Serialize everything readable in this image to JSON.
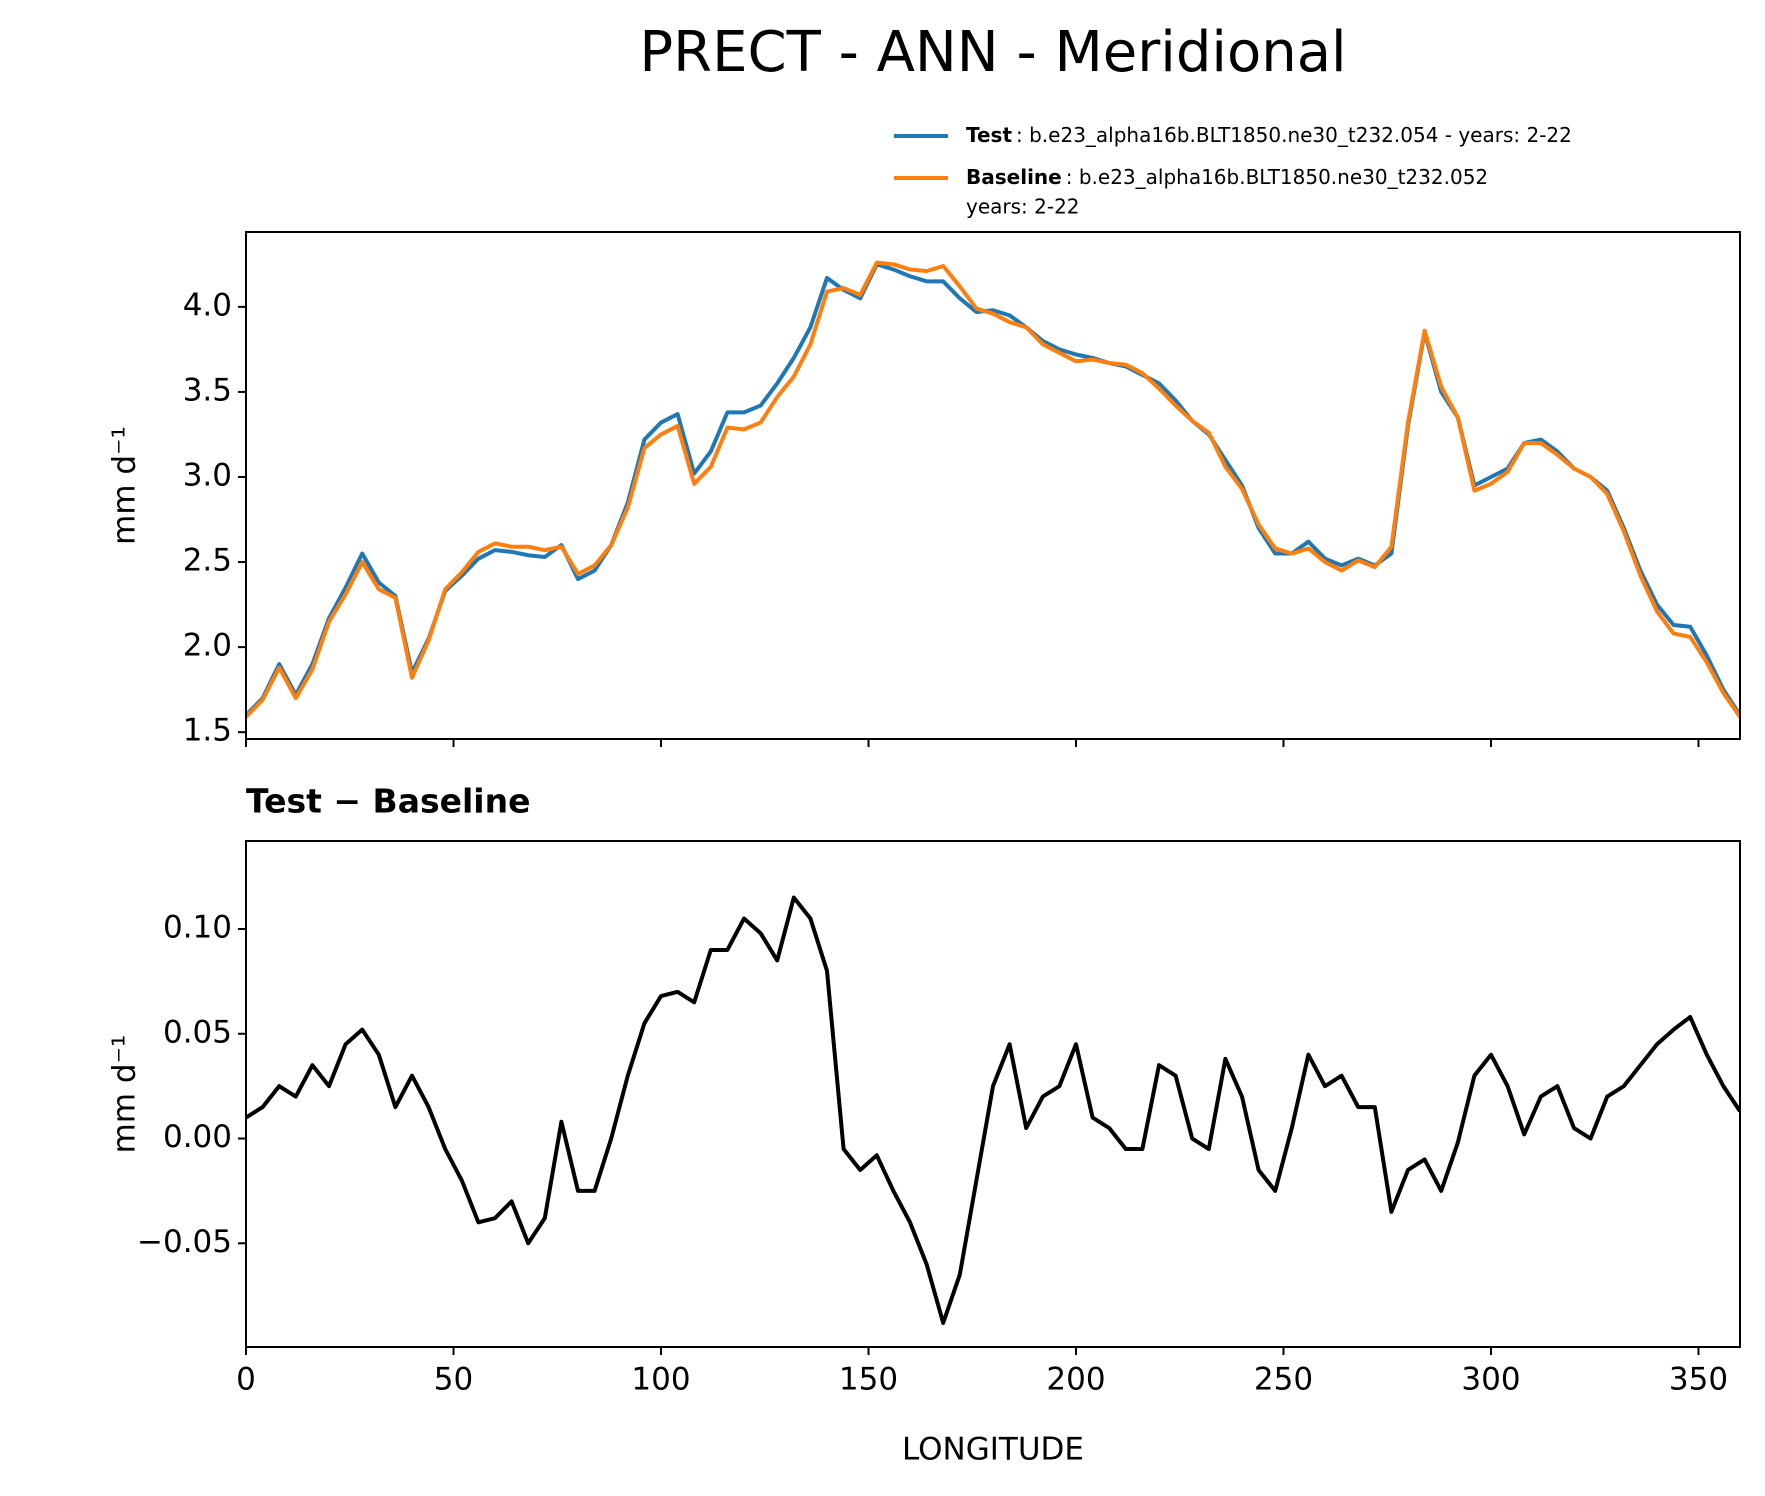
{
  "chart_data": [
    {
      "type": "line",
      "title": "PRECT - ANN - Meridional",
      "ylabel": "mm d⁻¹",
      "xlim": [
        0,
        360
      ],
      "ylim": [
        1.46,
        4.44
      ],
      "xticks": [
        0,
        50,
        100,
        150,
        200,
        250,
        300,
        350
      ],
      "yticks": [
        {
          "value": 1.5,
          "label": "1.5"
        },
        {
          "value": 2,
          "label": "2.0"
        },
        {
          "value": 2.5,
          "label": "2.5"
        },
        {
          "value": 3,
          "label": "3.0"
        },
        {
          "value": 3.5,
          "label": "3.5"
        },
        {
          "value": 4,
          "label": "4.0"
        }
      ],
      "x": [
        0,
        4,
        8,
        12,
        16,
        20,
        24,
        28,
        32,
        36,
        40,
        44,
        48,
        52,
        56,
        60,
        64,
        68,
        72,
        76,
        80,
        84,
        88,
        92,
        96,
        100,
        104,
        108,
        112,
        116,
        120,
        124,
        128,
        132,
        136,
        140,
        144,
        148,
        152,
        156,
        160,
        164,
        168,
        172,
        176,
        180,
        184,
        188,
        192,
        196,
        200,
        204,
        208,
        212,
        216,
        220,
        224,
        228,
        232,
        236,
        240,
        244,
        248,
        252,
        256,
        260,
        264,
        268,
        272,
        276,
        280,
        284,
        288,
        292,
        296,
        300,
        304,
        308,
        312,
        316,
        320,
        324,
        328,
        332,
        336,
        340,
        344,
        348,
        352,
        356,
        360
      ],
      "series": [
        {
          "name": "Test",
          "legend_lines": [
            ": b.e23_alpha16b.BLT1850.ne30_t232.054 - years: 2-22"
          ],
          "color": "#1f77b4",
          "values": [
            1.6,
            1.7,
            1.9,
            1.72,
            1.9,
            2.17,
            2.35,
            2.55,
            2.38,
            2.3,
            1.85,
            2.05,
            2.33,
            2.42,
            2.52,
            2.57,
            2.56,
            2.54,
            2.53,
            2.6,
            2.4,
            2.45,
            2.6,
            2.85,
            3.22,
            3.32,
            3.37,
            3.02,
            3.15,
            3.38,
            3.38,
            3.42,
            3.55,
            3.7,
            3.88,
            4.17,
            4.1,
            4.05,
            4.25,
            4.22,
            4.18,
            4.15,
            4.15,
            4.05,
            3.97,
            3.98,
            3.95,
            3.88,
            3.8,
            3.75,
            3.72,
            3.7,
            3.67,
            3.65,
            3.6,
            3.55,
            3.45,
            3.33,
            3.25,
            3.1,
            2.95,
            2.7,
            2.55,
            2.55,
            2.62,
            2.52,
            2.48,
            2.52,
            2.48,
            2.55,
            3.3,
            3.85,
            3.5,
            3.35,
            2.95,
            3.0,
            3.05,
            3.2,
            3.22,
            3.15,
            3.05,
            3.0,
            2.92,
            2.7,
            2.45,
            2.25,
            2.13,
            2.12,
            1.95,
            1.75,
            1.6
          ]
        },
        {
          "name": "Baseline",
          "legend_lines": [
            ": b.e23_alpha16b.BLT1850.ne30_t232.052",
            "years: 2-22"
          ],
          "color": "#ff7f0e",
          "values": [
            1.59,
            1.69,
            1.88,
            1.7,
            1.87,
            2.15,
            2.31,
            2.5,
            2.34,
            2.29,
            1.82,
            2.04,
            2.34,
            2.44,
            2.56,
            2.61,
            2.59,
            2.59,
            2.57,
            2.59,
            2.43,
            2.48,
            2.6,
            2.82,
            3.17,
            3.25,
            3.3,
            2.96,
            3.06,
            3.29,
            3.28,
            3.32,
            3.47,
            3.59,
            3.78,
            4.09,
            4.11,
            4.07,
            4.26,
            4.25,
            4.22,
            4.21,
            4.24,
            4.12,
            3.99,
            3.96,
            3.91,
            3.88,
            3.78,
            3.73,
            3.68,
            3.69,
            3.67,
            3.66,
            3.61,
            3.52,
            3.42,
            3.33,
            3.26,
            3.06,
            2.93,
            2.72,
            2.58,
            2.55,
            2.58,
            2.5,
            2.45,
            2.51,
            2.47,
            2.59,
            3.32,
            3.86,
            3.53,
            3.35,
            2.92,
            2.96,
            3.03,
            3.2,
            3.2,
            3.13,
            3.05,
            3.0,
            2.9,
            2.68,
            2.42,
            2.21,
            2.08,
            2.06,
            1.91,
            1.73,
            1.59
          ]
        }
      ]
    },
    {
      "type": "line",
      "title": "Test − Baseline",
      "ylabel": "mm d⁻¹",
      "xlabel": "LONGITUDE",
      "xlim": [
        0,
        360
      ],
      "ylim": [
        -0.0995,
        0.142
      ],
      "xticks": [
        0,
        50,
        100,
        150,
        200,
        250,
        300,
        350
      ],
      "yticks": [
        {
          "value": -0.05,
          "label": "−0.05"
        },
        {
          "value": 0,
          "label": "0.00"
        },
        {
          "value": 0.05,
          "label": "0.05"
        },
        {
          "value": 0.1,
          "label": "0.10"
        }
      ],
      "x": [
        0,
        4,
        8,
        12,
        16,
        20,
        24,
        28,
        32,
        36,
        40,
        44,
        48,
        52,
        56,
        60,
        64,
        68,
        72,
        76,
        80,
        84,
        88,
        92,
        96,
        100,
        104,
        108,
        112,
        116,
        120,
        124,
        128,
        132,
        136,
        140,
        144,
        148,
        152,
        156,
        160,
        164,
        168,
        172,
        176,
        180,
        184,
        188,
        192,
        196,
        200,
        204,
        208,
        212,
        216,
        220,
        224,
        228,
        232,
        236,
        240,
        244,
        248,
        252,
        256,
        260,
        264,
        268,
        272,
        276,
        280,
        284,
        288,
        292,
        296,
        300,
        304,
        308,
        312,
        316,
        320,
        324,
        328,
        332,
        336,
        340,
        344,
        348,
        352,
        356,
        360
      ],
      "series": [
        {
          "color": "#000000",
          "values": [
            0.01,
            0.015,
            0.025,
            0.02,
            0.035,
            0.025,
            0.045,
            0.052,
            0.04,
            0.015,
            0.03,
            0.015,
            -0.005,
            -0.02,
            -0.04,
            -0.038,
            -0.03,
            -0.05,
            -0.038,
            0.008,
            -0.025,
            -0.025,
            0.0,
            0.03,
            0.055,
            0.068,
            0.07,
            0.065,
            0.09,
            0.09,
            0.105,
            0.098,
            0.085,
            0.115,
            0.105,
            0.08,
            -0.005,
            -0.015,
            -0.008,
            -0.025,
            -0.04,
            -0.06,
            -0.088,
            -0.065,
            -0.02,
            0.025,
            0.045,
            0.005,
            0.02,
            0.025,
            0.045,
            0.01,
            0.005,
            -0.005,
            -0.005,
            0.035,
            0.03,
            0.0,
            -0.005,
            0.038,
            0.02,
            -0.015,
            -0.025,
            0.005,
            0.04,
            0.025,
            0.03,
            0.015,
            0.015,
            -0.035,
            -0.015,
            -0.01,
            -0.025,
            -0.002,
            0.03,
            0.04,
            0.025,
            0.002,
            0.02,
            0.025,
            0.005,
            0.0,
            0.02,
            0.025,
            0.035,
            0.045,
            0.052,
            0.058,
            0.04,
            0.025,
            0.013
          ]
        }
      ]
    }
  ]
}
